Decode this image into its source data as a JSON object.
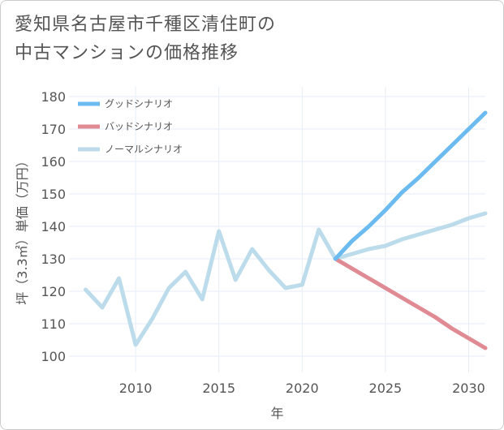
{
  "title": {
    "line1": "愛知県名古屋市千種区清住町の",
    "line2": "中古マンションの価格推移"
  },
  "chart_data": {
    "type": "line",
    "title": "愛知県名古屋市千種区清住町の中古マンションの価格推移",
    "xlabel": "年",
    "ylabel": "坪（3.3㎡）単価（万円）",
    "xlim": [
      2006,
      2031
    ],
    "ylim": [
      95,
      183
    ],
    "xticks": [
      2010,
      2015,
      2020,
      2025,
      2030
    ],
    "yticks": [
      100,
      110,
      120,
      130,
      140,
      150,
      160,
      170,
      180
    ],
    "grid": true,
    "legend_position": "top-left",
    "series": [
      {
        "name": "グッドシナリオ",
        "color": "#6bbaf0",
        "x": [
          2022,
          2023,
          2024,
          2025,
          2026,
          2027,
          2028,
          2029,
          2030,
          2031
        ],
        "y": [
          130,
          135.5,
          140,
          145,
          150.5,
          155,
          160,
          165,
          170,
          175
        ]
      },
      {
        "name": "バッドシナリオ",
        "color": "#e08a93",
        "x": [
          2022,
          2023,
          2024,
          2025,
          2026,
          2027,
          2028,
          2029,
          2030,
          2031
        ],
        "y": [
          130,
          127,
          124,
          121,
          118,
          115,
          112,
          108.5,
          105.5,
          102.5
        ]
      },
      {
        "name": "ノーマルシナリオ",
        "color": "#bcdcec",
        "x": [
          2007,
          2008,
          2009,
          2010,
          2011,
          2012,
          2013,
          2014,
          2015,
          2016,
          2017,
          2018,
          2019,
          2020,
          2021,
          2022,
          2023,
          2024,
          2025,
          2026,
          2027,
          2028,
          2029,
          2030,
          2031
        ],
        "y": [
          120.5,
          115,
          124,
          103.5,
          111.5,
          121,
          126,
          117.5,
          138.5,
          123.5,
          133,
          126.5,
          121,
          122,
          139,
          130,
          131.5,
          133,
          134,
          136,
          137.5,
          139,
          140.5,
          142.5,
          144
        ]
      }
    ]
  }
}
